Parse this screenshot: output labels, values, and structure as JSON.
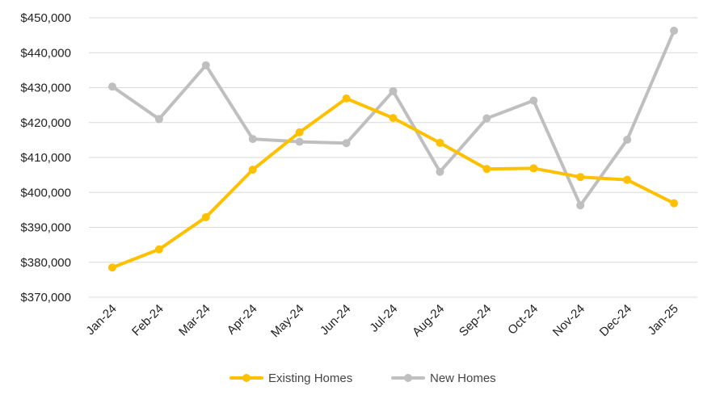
{
  "chart_data": {
    "type": "line",
    "categories": [
      "Jan-24",
      "Feb-24",
      "Mar-24",
      "Apr-24",
      "May-24",
      "Jun-24",
      "Jul-24",
      "Aug-24",
      "Sep-24",
      "Oct-24",
      "Nov-24",
      "Dec-24",
      "Jan-25"
    ],
    "series": [
      {
        "name": "Existing Homes",
        "color": "#FFC000",
        "values": [
          378500,
          383700,
          392900,
          406500,
          417200,
          426900,
          421300,
          414200,
          406700,
          406900,
          404400,
          403600,
          396900
        ]
      },
      {
        "name": "New Homes",
        "color": "#BFBFBF",
        "values": [
          430300,
          421000,
          436400,
          415300,
          414500,
          414100,
          429000,
          405900,
          421200,
          426300,
          396300,
          415100,
          446300
        ]
      }
    ],
    "ylim": [
      370000,
      450000
    ],
    "yticks": [
      370000,
      380000,
      390000,
      400000,
      410000,
      420000,
      430000,
      440000,
      450000
    ],
    "ytick_labels": [
      "$370,000",
      "$380,000",
      "$390,000",
      "$400,000",
      "$410,000",
      "$420,000",
      "$430,000",
      "$440,000",
      "$450,000"
    ],
    "grid": true,
    "legend_position": "bottom"
  }
}
